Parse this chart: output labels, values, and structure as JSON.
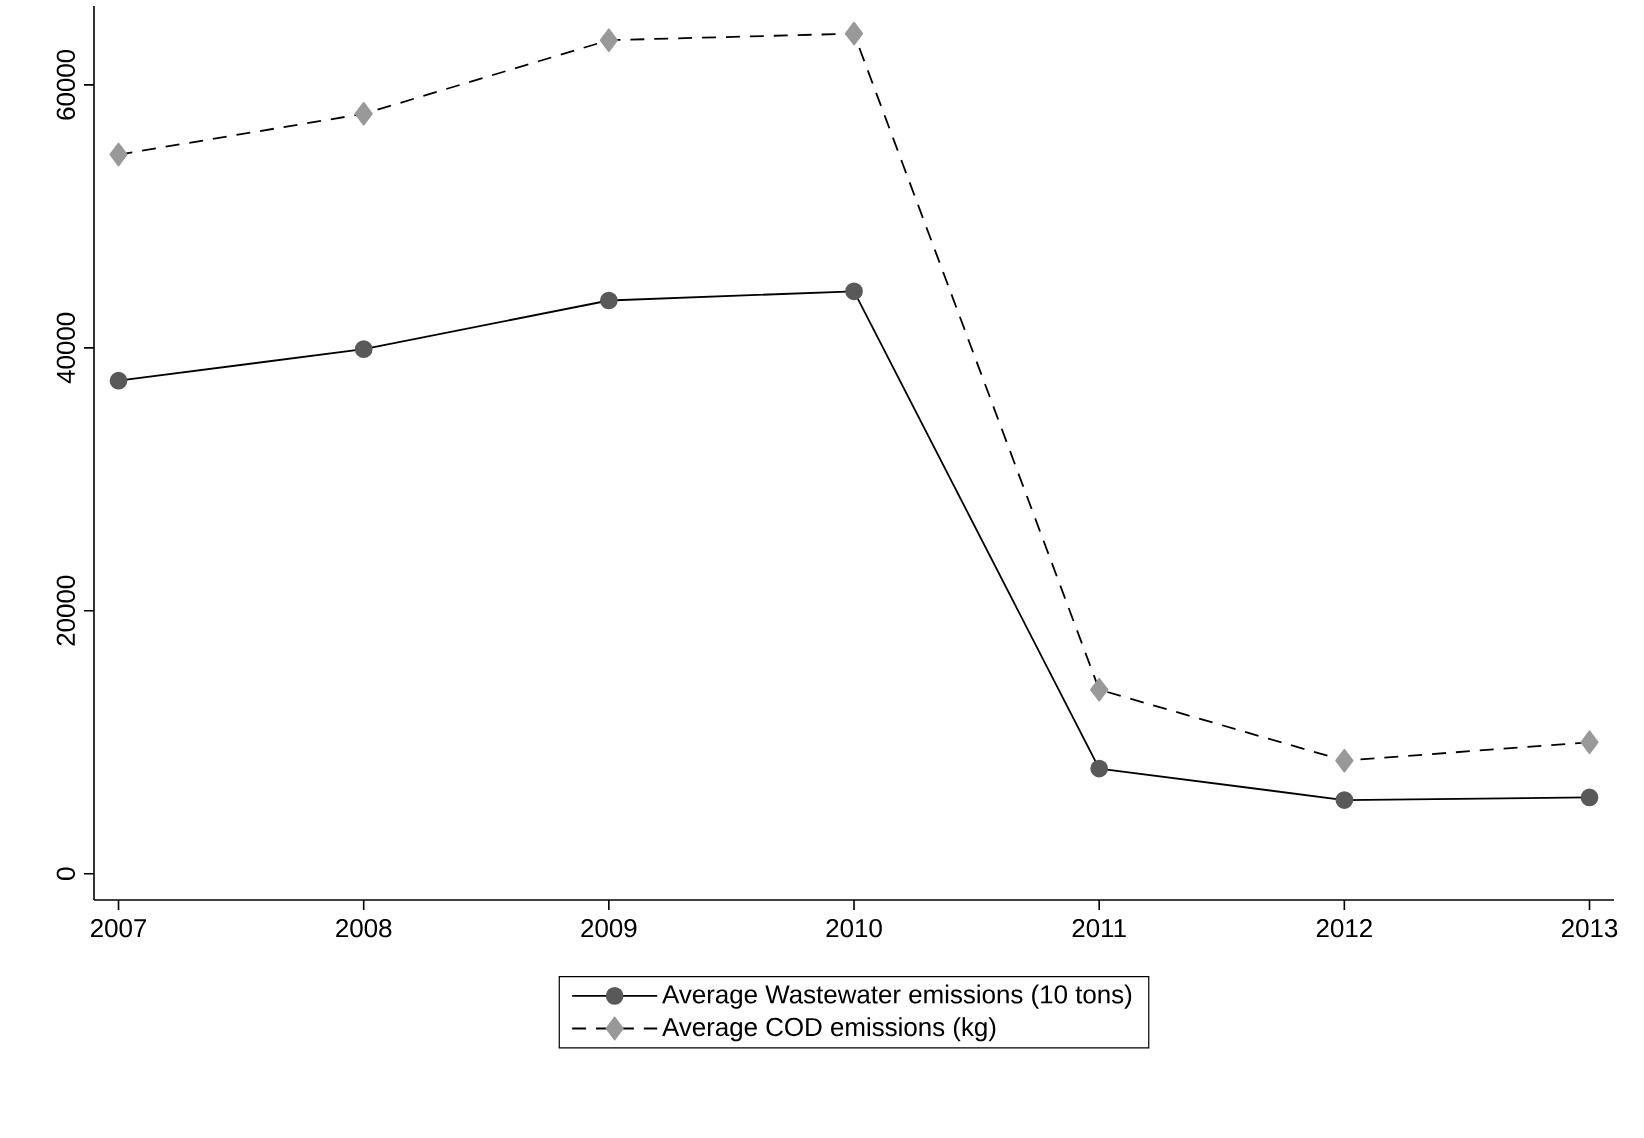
{
  "chart_data": {
    "type": "line",
    "x": [
      2007,
      2008,
      2009,
      2010,
      2011,
      2012,
      2013
    ],
    "series": [
      {
        "name": "Average Wastewater emissions (10 tons)",
        "color": "#595959",
        "marker": "circle",
        "line_style": "solid",
        "values": [
          37500,
          39900,
          43600,
          44300,
          8000,
          5600,
          5800
        ]
      },
      {
        "name": "Average COD emissions (kg)",
        "color": "#999999",
        "marker": "diamond",
        "line_style": "dashed",
        "values": [
          54700,
          57800,
          63400,
          63900,
          14000,
          8600,
          10000
        ]
      }
    ],
    "xlim": [
      2006.9,
      2013.1
    ],
    "xticks": [
      2007,
      2008,
      2009,
      2010,
      2011,
      2012,
      2013
    ],
    "ylim": [
      -2000,
      66000
    ],
    "yticks": [
      0,
      20000,
      40000,
      60000
    ],
    "grid": false,
    "legend": "bottom"
  }
}
